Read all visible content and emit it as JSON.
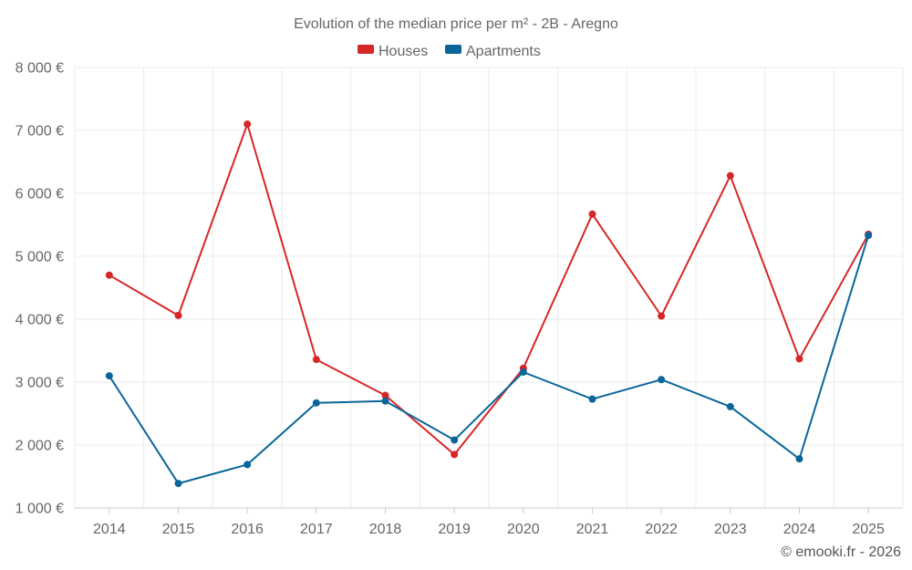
{
  "chart_data": {
    "type": "line",
    "title": "Evolution of the median price per m² - 2B - Aregno",
    "categories": [
      "2014",
      "2015",
      "2016",
      "2017",
      "2018",
      "2019",
      "2020",
      "2021",
      "2022",
      "2023",
      "2024",
      "2025"
    ],
    "series": [
      {
        "name": "Houses",
        "color": "#d62728",
        "values": [
          4700,
          4060,
          7100,
          3360,
          2790,
          1850,
          3220,
          5670,
          4050,
          6280,
          3370,
          5350
        ]
      },
      {
        "name": "Apartments",
        "color": "#0a6699",
        "values": [
          3100,
          1390,
          1690,
          2670,
          2700,
          2080,
          3160,
          2730,
          3040,
          2610,
          1780,
          5330
        ]
      }
    ],
    "ylim": [
      1000,
      8000
    ],
    "yticks": [
      1000,
      2000,
      3000,
      4000,
      5000,
      6000,
      7000,
      8000
    ],
    "ytick_labels": [
      "1 000 €",
      "2 000 €",
      "3 000 €",
      "4 000 €",
      "5 000 €",
      "6 000 €",
      "7 000 €",
      "8 000 €"
    ],
    "grid": true,
    "legend_position": "top-center",
    "xlabel": "",
    "ylabel": ""
  },
  "credit": "© emooki.fr - 2026"
}
